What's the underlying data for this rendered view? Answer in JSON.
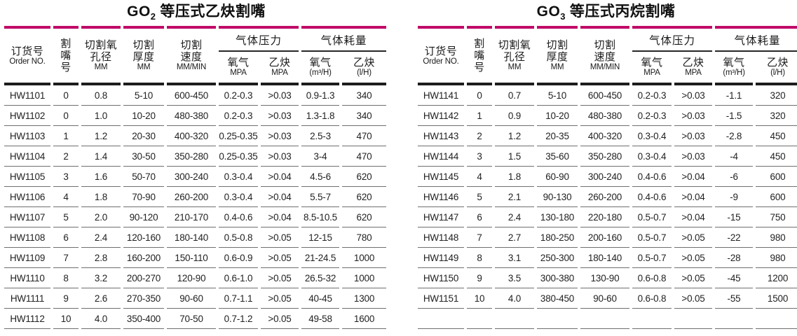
{
  "colors": {
    "accent_magenta": "#c00a68",
    "header_rule_black": "#1c1c1c",
    "row_rule_gray": "#6e6e6e"
  },
  "tables": [
    {
      "id": "go2-acetylene",
      "title": {
        "model": "GO",
        "model_sub": "2",
        "name": " 等压式乙炔割嘴"
      },
      "columns": {
        "order_no": {
          "cn": "订货号",
          "en": "Order NO."
        },
        "nozzle_no": {
          "cn": "割\n嘴\n号"
        },
        "oxygen_bore": {
          "cn": "切割氧\n孔径",
          "unit": "MM"
        },
        "cut_thickness": {
          "cn": "切割\n厚度",
          "unit": "MM"
        },
        "cut_speed": {
          "cn": "切割\n速度",
          "unit": "MM/MIN"
        },
        "gas_pressure_group": "气体压力",
        "gas_consumption_group": "气体耗量",
        "pressure_oxygen": {
          "cn": "氧气",
          "unit": "MPA"
        },
        "pressure_fuel": {
          "cn": "乙炔",
          "unit": "MPA"
        },
        "consumption_oxygen": {
          "cn": "氧气",
          "unit": "(m³/H)"
        },
        "consumption_fuel": {
          "cn": "乙炔",
          "unit": "(l/H)"
        }
      },
      "rows": [
        [
          "HW1101",
          "0",
          "0.8",
          "5-10",
          "600-450",
          "0.2-0.3",
          ">0.03",
          "0.9-1.3",
          "340"
        ],
        [
          "HW1102",
          "0",
          "1.0",
          "10-20",
          "480-380",
          "0.2-0.3",
          ">0.03",
          "1.3-1.8",
          "340"
        ],
        [
          "HW1103",
          "1",
          "1.2",
          "20-30",
          "400-320",
          "0.25-0.35",
          ">0.03",
          "2.5-3",
          "470"
        ],
        [
          "HW1104",
          "2",
          "1.4",
          "30-50",
          "350-280",
          "0.25-0.35",
          ">0.03",
          "3-4",
          "470"
        ],
        [
          "HW1105",
          "3",
          "1.6",
          "50-70",
          "300-240",
          "0.3-0.4",
          ">0.04",
          "4.5-6",
          "620"
        ],
        [
          "HW1106",
          "4",
          "1.8",
          "70-90",
          "260-200",
          "0.3-0.4",
          ">0.04",
          "5.5-7",
          "620"
        ],
        [
          "HW1107",
          "5",
          "2.0",
          "90-120",
          "210-170",
          "0.4-0.6",
          ">0.04",
          "8.5-10.5",
          "620"
        ],
        [
          "HW1108",
          "6",
          "2.4",
          "120-160",
          "180-140",
          "0.5-0.8",
          ">0.05",
          "12-15",
          "780"
        ],
        [
          "HW1109",
          "7",
          "2.8",
          "160-200",
          "150-110",
          "0.6-0.9",
          ">0.05",
          "21-24.5",
          "1000"
        ],
        [
          "HW1110",
          "8",
          "3.2",
          "200-270",
          "120-90",
          "0.6-1.0",
          ">0.05",
          "26.5-32",
          "1000"
        ],
        [
          "HW1111",
          "9",
          "2.6",
          "270-350",
          "90-60",
          "0.7-1.1",
          ">0.05",
          "40-45",
          "1300"
        ],
        [
          "HW1112",
          "10",
          "4.0",
          "350-400",
          "70-50",
          "0.7-1.2",
          ">0.05",
          "49-58",
          "1600"
        ]
      ],
      "trailing_empty_row": false
    },
    {
      "id": "go3-propane",
      "title": {
        "model": "GO",
        "model_sub": "3",
        "name": " 等压式丙烷割嘴"
      },
      "columns": {
        "order_no": {
          "cn": "订货号",
          "en": "Order NO."
        },
        "nozzle_no": {
          "cn": "割\n嘴\n号"
        },
        "oxygen_bore": {
          "cn": "切割氧\n孔径",
          "unit": "MM"
        },
        "cut_thickness": {
          "cn": "切割\n厚度",
          "unit": "MM"
        },
        "cut_speed": {
          "cn": "切割\n速度",
          "unit": "MM/MIN"
        },
        "gas_pressure_group": "气体压力",
        "gas_consumption_group": "气体耗量",
        "pressure_oxygen": {
          "cn": "氧气",
          "unit": "MPA"
        },
        "pressure_fuel": {
          "cn": "乙炔",
          "unit": "MPA"
        },
        "consumption_oxygen": {
          "cn": "氧气",
          "unit": "(m³/H)"
        },
        "consumption_fuel": {
          "cn": "乙炔",
          "unit": "(l/H)"
        }
      },
      "rows": [
        [
          "HW1141",
          "0",
          "0.7",
          "5-10",
          "600-450",
          "0.2-0.3",
          ">0.03",
          "-1.1",
          "320"
        ],
        [
          "HW1142",
          "1",
          "0.9",
          "10-20",
          "480-380",
          "0.2-0.3",
          ">0.03",
          "-1.5",
          "320"
        ],
        [
          "HW1143",
          "2",
          "1.2",
          "20-35",
          "400-320",
          "0.3-0.4",
          ">0.03",
          "-2.8",
          "450"
        ],
        [
          "HW1144",
          "3",
          "1.5",
          "35-60",
          "350-280",
          "0.3-0.4",
          ">0.03",
          "-4",
          "450"
        ],
        [
          "HW1145",
          "4",
          "1.8",
          "60-90",
          "300-240",
          "0.4-0.6",
          ">0.04",
          "-6",
          "600"
        ],
        [
          "HW1146",
          "5",
          "2.1",
          "90-130",
          "260-200",
          "0.4-0.6",
          ">0.04",
          "-9",
          "600"
        ],
        [
          "HW1147",
          "6",
          "2.4",
          "130-180",
          "220-180",
          "0.5-0.7",
          ">0.04",
          "-15",
          "750"
        ],
        [
          "HW1148",
          "7",
          "2.7",
          "180-250",
          "200-160",
          "0.5-0.7",
          ">0.05",
          "-22",
          "980"
        ],
        [
          "HW1149",
          "8",
          "3.1",
          "250-300",
          "180-140",
          "0.5-0.7",
          ">0.05",
          "-28",
          "980"
        ],
        [
          "HW1150",
          "9",
          "3.5",
          "300-380",
          "130-90",
          "0.6-0.8",
          ">0.05",
          "-45",
          "1200"
        ],
        [
          "HW1151",
          "10",
          "4.0",
          "380-450",
          "90-60",
          "0.6-0.8",
          ">0.05",
          "-55",
          "1500"
        ]
      ],
      "trailing_empty_row": true
    }
  ]
}
